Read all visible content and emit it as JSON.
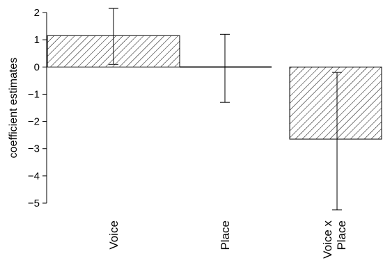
{
  "chart_data": {
    "type": "bar",
    "ylabel": "coefficient estimates",
    "ylim": [
      -5,
      2
    ],
    "yticks": [
      2,
      1,
      0,
      -1,
      -2,
      -3,
      -4,
      -5
    ],
    "ytick_labels": [
      "2",
      "1",
      "0",
      "−1",
      "−2",
      "−3",
      "−4",
      "−5"
    ],
    "categories": [
      {
        "lines": [
          "Voice"
        ]
      },
      {
        "lines": [
          "Place"
        ]
      },
      {
        "lines": [
          "Voice x",
          "Place"
        ]
      }
    ],
    "values": [
      1.15,
      0.0,
      -2.65
    ],
    "error_low": [
      0.1,
      -1.3,
      -5.25
    ],
    "error_high": [
      2.15,
      1.2,
      -0.2
    ],
    "fill": "hatched",
    "grid": false,
    "colors": {
      "bar_edge": "#000000",
      "hatch": "#000000",
      "background": "#ffffff"
    }
  }
}
